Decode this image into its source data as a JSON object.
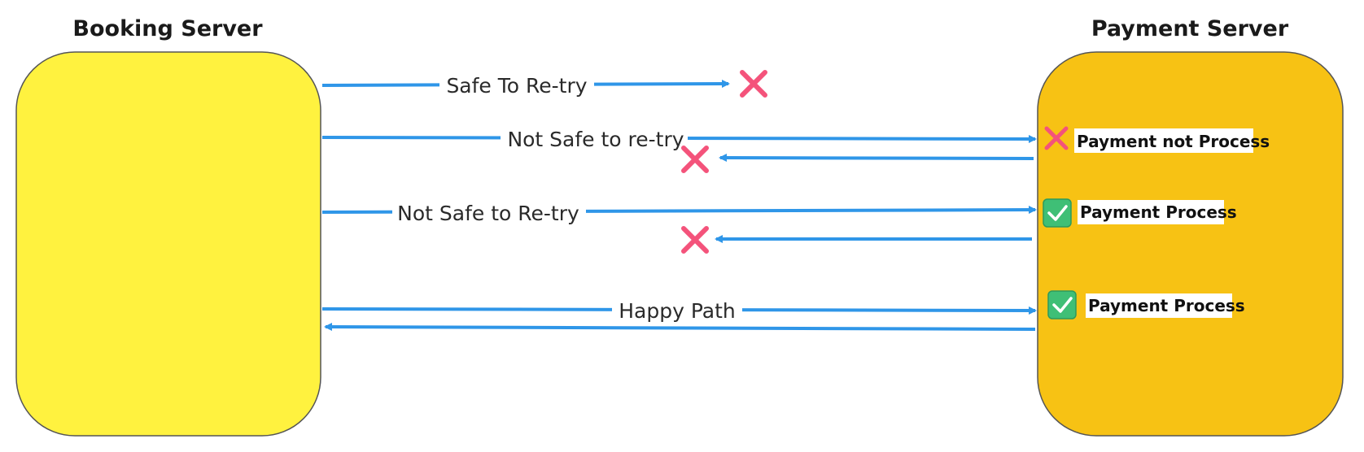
{
  "colors": {
    "booking_fill": "#fff23f",
    "payment_fill": "#f7c214",
    "arrow": "#2f96e8",
    "cross": "#f4537b",
    "check_bg": "#3fbf76",
    "check_mark": "#ffffff"
  },
  "booking_server": {
    "title": "Booking Server"
  },
  "payment_server": {
    "title": "Payment Server"
  },
  "scenarios": {
    "safe_retry": {
      "label": "Safe To Re-try",
      "icon": "cross-icon"
    },
    "not_safe_lower": {
      "label": "Not Safe to re-try",
      "status": "Payment not Process",
      "status_icon": "cross-icon",
      "return_icon": "cross-icon"
    },
    "not_safe_upper": {
      "label": "Not Safe to Re-try",
      "status": "Payment Process",
      "status_icon": "check-icon",
      "return_icon": "cross-icon"
    },
    "happy_path": {
      "label": "Happy Path",
      "status": "Payment Process",
      "status_icon": "check-icon"
    }
  }
}
